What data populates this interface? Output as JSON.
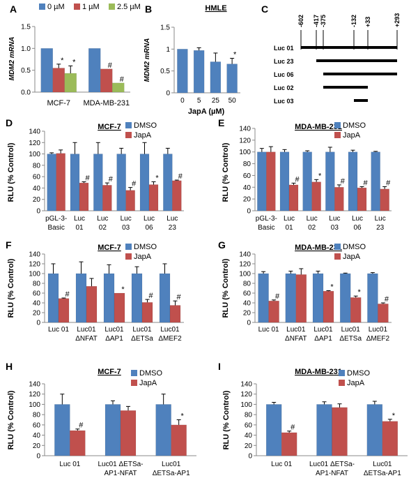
{
  "colors": {
    "blue": "#4f81bd",
    "red": "#c0504d",
    "green": "#9bbb59",
    "axis": "#888888",
    "error_bar": "#000000"
  },
  "chart_data": [
    {
      "panel": "A",
      "type": "bar",
      "title": "",
      "xlabel": "",
      "ylabel": "MDM2 mRNA",
      "ylim": [
        0,
        1.5
      ],
      "yticks": [
        "0.0",
        "0.5",
        "1.0",
        "1.5"
      ],
      "categories": [
        "MCF-7",
        "MDA-MB-231"
      ],
      "series": [
        {
          "name": "0 µM",
          "color": "blue",
          "values": [
            1.0,
            1.0
          ],
          "errors": [
            0,
            0
          ],
          "marks": [
            "",
            ""
          ]
        },
        {
          "name": "1 µM",
          "color": "red",
          "values": [
            0.55,
            0.53
          ],
          "errors": [
            0.09,
            0
          ],
          "marks": [
            "*",
            "#"
          ]
        },
        {
          "name": "2.5 µM",
          "color": "green",
          "values": [
            0.43,
            0.21
          ],
          "errors": [
            0.17,
            0
          ],
          "marks": [
            "*",
            "#"
          ]
        }
      ]
    },
    {
      "panel": "B",
      "type": "bar",
      "title": "HMLE",
      "xlabel": "JapA (µM)",
      "ylabel": "MDM2 mRNA",
      "ylim": [
        0,
        1.5
      ],
      "yticks": [
        "0",
        "0.5",
        "1",
        "1.5"
      ],
      "categories": [
        "0",
        "5",
        "25",
        "50"
      ],
      "series": [
        {
          "name": "",
          "color": "blue",
          "values": [
            1.0,
            0.97,
            0.71,
            0.66
          ],
          "errors": [
            0,
            0.06,
            0.2,
            0.13
          ],
          "marks": [
            "",
            "",
            "",
            "*"
          ]
        }
      ]
    },
    {
      "panel": "C",
      "type": "diagram",
      "title": "",
      "positions": [
        "-602",
        "-417",
        "-375",
        "-132",
        "+33",
        "+293"
      ],
      "constructs": [
        {
          "label": "Luc 01",
          "start": "-602",
          "end": "+293"
        },
        {
          "label": "Luc 23",
          "start": "-417",
          "end": "+293"
        },
        {
          "label": "Luc 06",
          "start": "-375",
          "end": "+293"
        },
        {
          "label": "Luc 02",
          "start": "-375",
          "end": "+33"
        },
        {
          "label": "Luc 03",
          "start": "-132",
          "end": "+33"
        }
      ]
    },
    {
      "panel": "D",
      "type": "bar",
      "title": "MCF-7",
      "xlabel": "",
      "ylabel": "RLU (% Control)",
      "ylim": [
        0,
        140
      ],
      "yticks": [
        "0",
        "20",
        "40",
        "60",
        "80",
        "100",
        "120",
        "140"
      ],
      "categories": [
        [
          "pGL-3-",
          "Basic"
        ],
        [
          "Luc",
          "01"
        ],
        [
          "Luc",
          "02"
        ],
        [
          "Luc",
          "03"
        ],
        [
          "Luc",
          "06"
        ],
        [
          "Luc",
          "23"
        ]
      ],
      "series": [
        {
          "name": "DMSO",
          "color": "blue",
          "values": [
            100,
            100,
            100,
            100,
            100,
            100
          ],
          "errors": [
            2,
            20,
            20,
            10,
            20,
            10
          ],
          "marks": [
            "",
            "",
            "",
            "",
            "",
            ""
          ]
        },
        {
          "name": "JapA",
          "color": "red",
          "values": [
            101,
            49,
            45,
            36,
            46,
            53
          ],
          "errors": [
            6,
            2,
            4,
            5,
            5,
            1
          ],
          "marks": [
            "",
            "#",
            "#",
            "#",
            "*",
            "#"
          ]
        }
      ]
    },
    {
      "panel": "E",
      "type": "bar",
      "title": "MDA-MB-231",
      "xlabel": "",
      "ylabel": "RLU (% Control)",
      "ylim": [
        0,
        140
      ],
      "yticks": [
        "0",
        "20",
        "40",
        "60",
        "80",
        "100",
        "120",
        "140"
      ],
      "categories": [
        [
          "pGL-3-",
          "Basic"
        ],
        [
          "Luc",
          "01"
        ],
        [
          "Luc",
          "02"
        ],
        [
          "Luc",
          "03"
        ],
        [
          "Luc",
          "06"
        ],
        [
          "Luc",
          "23"
        ]
      ],
      "series": [
        {
          "name": "DMSO",
          "color": "blue",
          "values": [
            100,
            100,
            100,
            100,
            100,
            100
          ],
          "errors": [
            6,
            4,
            2,
            8,
            3,
            1
          ],
          "marks": [
            "",
            "",
            "",
            "",
            "",
            ""
          ]
        },
        {
          "name": "JapA",
          "color": "red",
          "values": [
            100,
            44,
            49,
            40,
            39,
            37
          ],
          "errors": [
            9,
            3,
            4,
            4,
            2,
            4
          ],
          "marks": [
            "",
            "#",
            "*",
            "#",
            "#",
            "#"
          ]
        }
      ]
    },
    {
      "panel": "F",
      "type": "bar",
      "title": "MCF-7",
      "xlabel": "",
      "ylabel": "RLU (% Control)",
      "ylim": [
        0,
        140
      ],
      "yticks": [
        "0",
        "20",
        "40",
        "60",
        "80",
        "100",
        "120",
        "140"
      ],
      "categories": [
        [
          "Luc 01"
        ],
        [
          "Luc01",
          "ΔNFAT"
        ],
        [
          "Luc01",
          "ΔAP1"
        ],
        [
          "Luc01",
          "ΔETSa"
        ],
        [
          "Luc01",
          "ΔMEF2"
        ]
      ],
      "series": [
        {
          "name": "DMSO",
          "color": "blue",
          "values": [
            100,
            100,
            100,
            100,
            100
          ],
          "errors": [
            20,
            24,
            18,
            14,
            20
          ],
          "marks": [
            "",
            "",
            "",
            "",
            ""
          ]
        },
        {
          "name": "JapA",
          "color": "red",
          "values": [
            49,
            74,
            60,
            41,
            35
          ],
          "errors": [
            1,
            16,
            0,
            6,
            9
          ],
          "marks": [
            "#",
            "",
            "*",
            "#",
            "#"
          ]
        }
      ]
    },
    {
      "panel": "G",
      "type": "bar",
      "title": "MDA-MB-231",
      "xlabel": "",
      "ylabel": "RLU (% Control)",
      "ylim": [
        0,
        140
      ],
      "yticks": [
        "0",
        "20",
        "40",
        "60",
        "80",
        "100",
        "120",
        "140"
      ],
      "categories": [
        [
          "Luc 01"
        ],
        [
          "Luc01",
          "ΔNFAT"
        ],
        [
          "Luc01",
          "ΔAP1"
        ],
        [
          "Luc01",
          "ΔETSa"
        ],
        [
          "Luc01",
          "ΔMEF2"
        ]
      ],
      "series": [
        {
          "name": "DMSO",
          "color": "blue",
          "values": [
            100,
            100,
            100,
            100,
            100
          ],
          "errors": [
            4,
            5,
            5,
            1,
            2
          ],
          "marks": [
            "",
            "",
            "",
            "",
            ""
          ]
        },
        {
          "name": "JapA",
          "color": "red",
          "values": [
            44,
            98,
            64,
            51,
            38
          ],
          "errors": [
            2,
            12,
            1,
            3,
            2
          ],
          "marks": [
            "#",
            "",
            "*",
            "*",
            "#"
          ]
        }
      ]
    },
    {
      "panel": "H",
      "type": "bar",
      "title": "MCF-7",
      "xlabel": "",
      "ylabel": "RLU (% Control)",
      "ylim": [
        0,
        140
      ],
      "yticks": [
        "0",
        "20",
        "40",
        "60",
        "80",
        "100",
        "120",
        "140"
      ],
      "categories": [
        [
          "Luc 01"
        ],
        [
          "Luc01 ΔETSa-",
          "AP1-NFAT"
        ],
        [
          "Luc01",
          "ΔETSa-AP1"
        ]
      ],
      "series": [
        {
          "name": "DMSO",
          "color": "blue",
          "values": [
            100,
            100,
            100
          ],
          "errors": [
            20,
            7,
            20
          ],
          "marks": [
            "",
            "",
            ""
          ]
        },
        {
          "name": "JapA",
          "color": "red",
          "values": [
            49,
            88,
            60
          ],
          "errors": [
            3,
            8,
            10
          ],
          "marks": [
            "#",
            "",
            "*"
          ]
        }
      ]
    },
    {
      "panel": "I",
      "type": "bar",
      "title": "MDA-MB-231",
      "xlabel": "",
      "ylabel": "RLU (% Control)",
      "ylim": [
        0,
        140
      ],
      "yticks": [
        "0",
        "20",
        "40",
        "60",
        "80",
        "100",
        "120",
        "140"
      ],
      "categories": [
        [
          "Luc 01"
        ],
        [
          "Luc01 ΔETSa-",
          "AP1-NFAT"
        ],
        [
          "Luc01",
          "ΔETSa-AP1"
        ]
      ],
      "series": [
        {
          "name": "DMSO",
          "color": "blue",
          "values": [
            100,
            100,
            100
          ],
          "errors": [
            4,
            5,
            6
          ],
          "marks": [
            "",
            "",
            ""
          ]
        },
        {
          "name": "JapA",
          "color": "red",
          "values": [
            45,
            94,
            67
          ],
          "errors": [
            3,
            7,
            4
          ],
          "marks": [
            "#",
            "",
            "*"
          ]
        }
      ]
    }
  ]
}
